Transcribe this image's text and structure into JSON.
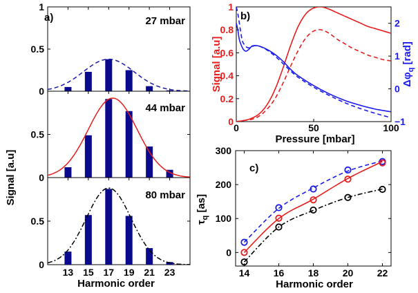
{
  "chart_data": [
    {
      "id": "a",
      "type": "bar",
      "panel_label": "a)",
      "xlabel": "Harmonic order",
      "ylabel": "Signal [a.u]",
      "x_ticks": [
        "13",
        "15",
        "17",
        "19",
        "21",
        "23"
      ],
      "xlim": [
        11,
        25
      ],
      "ylim": [
        0,
        1
      ],
      "subplots": [
        {
          "label": "27 mbar",
          "y_ticks": [
            "0",
            "0.5",
            "1"
          ],
          "bars": {
            "x": [
              13,
              15,
              17,
              19,
              21,
              23
            ],
            "values": [
              0.05,
              0.23,
              0.38,
              0.25,
              0.06,
              0.01
            ]
          },
          "fit": {
            "style": "dashed",
            "color": "#1a1aa8",
            "center": 17,
            "amplitude": 0.38,
            "sigma": 2.5
          }
        },
        {
          "label": "44 mbar",
          "y_ticks": [
            "0",
            "0.5",
            "1"
          ],
          "bars": {
            "x": [
              13,
              15,
              17,
              19,
              21,
              23
            ],
            "values": [
              0.12,
              0.49,
              0.91,
              0.77,
              0.36,
              0.09
            ]
          },
          "fit": {
            "style": "solid",
            "color": "#e81c1c",
            "center": 17.4,
            "amplitude": 0.92,
            "sigma": 2.4
          }
        },
        {
          "label": "80 mbar",
          "y_ticks": [
            "0",
            "0.5",
            "1"
          ],
          "bars": {
            "x": [
              13,
              15,
              17,
              19,
              21,
              23
            ],
            "values": [
              0.15,
              0.57,
              0.87,
              0.56,
              0.19,
              0.03
            ]
          },
          "fit": {
            "style": "dashdot",
            "color": "#000000",
            "center": 17,
            "amplitude": 0.88,
            "sigma": 2.2
          }
        }
      ],
      "bar_color": "#0a0a8c"
    },
    {
      "id": "b",
      "type": "line",
      "panel_label": "b)",
      "xlabel": "Pressure [mbar]",
      "ylabel_left": "Signal [a.u]",
      "ylabel_right": "Δφ_q [rad]",
      "ylabel_right_parts": {
        "main": "Δφ",
        "sub": "q",
        "rest": " [rad]"
      },
      "xlim": [
        0,
        100
      ],
      "x_ticks": [
        "0",
        "50",
        "100"
      ],
      "ylim_left": [
        0,
        1
      ],
      "y_ticks_left": [
        "0",
        "0.2",
        "0.4",
        "0.6",
        "0.8",
        "1"
      ],
      "ylim_right": [
        -1,
        2.5
      ],
      "y_ticks_right": [
        "−1",
        "0",
        "1",
        "2"
      ],
      "left_color": "#e81c1c",
      "right_color": "#1a1aee",
      "series": [
        {
          "axis": "left",
          "style": "solid",
          "color": "#e81c1c",
          "x": [
            0,
            5,
            10,
            15,
            20,
            25,
            30,
            35,
            40,
            45,
            50,
            55,
            60,
            65,
            70,
            75,
            80,
            85,
            90,
            95,
            100
          ],
          "y": [
            0.0,
            0.01,
            0.03,
            0.07,
            0.15,
            0.28,
            0.46,
            0.66,
            0.83,
            0.94,
            0.99,
            1.0,
            0.98,
            0.95,
            0.92,
            0.89,
            0.86,
            0.83,
            0.81,
            0.79,
            0.77
          ]
        },
        {
          "axis": "left",
          "style": "dashed",
          "color": "#e81c1c",
          "x": [
            0,
            5,
            10,
            15,
            20,
            25,
            30,
            35,
            40,
            45,
            50,
            55,
            60,
            65,
            70,
            75,
            80,
            85,
            90,
            95,
            100
          ],
          "y": [
            0.0,
            0.01,
            0.02,
            0.05,
            0.11,
            0.2,
            0.33,
            0.48,
            0.62,
            0.73,
            0.79,
            0.8,
            0.77,
            0.72,
            0.68,
            0.64,
            0.61,
            0.58,
            0.56,
            0.54,
            0.53
          ]
        },
        {
          "axis": "right",
          "style": "solid",
          "color": "#1a1aee",
          "x": [
            0,
            1,
            2,
            4,
            6,
            8,
            10,
            12,
            15,
            20,
            25,
            30,
            35,
            40,
            50,
            60,
            70,
            80,
            90,
            100
          ],
          "y": [
            2.0,
            1.8,
            1.5,
            1.25,
            1.15,
            1.2,
            1.3,
            1.32,
            1.3,
            1.2,
            1.05,
            0.85,
            0.6,
            0.4,
            0.1,
            -0.15,
            -0.35,
            -0.5,
            -0.62,
            -0.7
          ]
        },
        {
          "axis": "right",
          "style": "dashed",
          "color": "#1a1aee",
          "x": [
            0,
            1,
            2,
            3,
            4,
            6,
            8,
            10,
            12,
            15,
            20,
            25,
            30,
            35,
            40,
            50,
            60,
            70,
            80,
            90,
            100
          ],
          "y": [
            2.5,
            2.3,
            2.0,
            1.7,
            1.45,
            1.3,
            1.25,
            1.28,
            1.32,
            1.3,
            1.18,
            1.0,
            0.78,
            0.55,
            0.35,
            0.05,
            -0.2,
            -0.42,
            -0.6,
            -0.75,
            -0.88
          ]
        }
      ]
    },
    {
      "id": "c",
      "type": "line",
      "panel_label": "c)",
      "xlabel": "Harmonic order",
      "ylabel_parts": {
        "main": "τ",
        "sub": "q",
        "rest": " [as]"
      },
      "xlim": [
        13.5,
        22.5
      ],
      "x_ticks": [
        "14",
        "16",
        "18",
        "20",
        "22"
      ],
      "ylim": [
        -40,
        300
      ],
      "y_ticks": [
        "0",
        "100",
        "200",
        "300"
      ],
      "series": [
        {
          "style": "dashed",
          "color": "#1a1aee",
          "x": [
            14,
            16,
            18,
            20,
            22
          ],
          "y": [
            30,
            132,
            187,
            243,
            268
          ],
          "fit": [
            30,
            130,
            190,
            240,
            270
          ]
        },
        {
          "style": "solid",
          "color": "#e81c1c",
          "x": [
            14,
            16,
            18,
            20,
            22
          ],
          "y": [
            0,
            101,
            155,
            216,
            264
          ],
          "fit": [
            0,
            100,
            157,
            218,
            268
          ]
        },
        {
          "style": "dashdot",
          "color": "#000000",
          "x": [
            14,
            16,
            18,
            20,
            22
          ],
          "y": [
            -28,
            75,
            125,
            162,
            186
          ],
          "fit": [
            -28,
            75,
            124,
            162,
            187
          ]
        }
      ]
    }
  ]
}
